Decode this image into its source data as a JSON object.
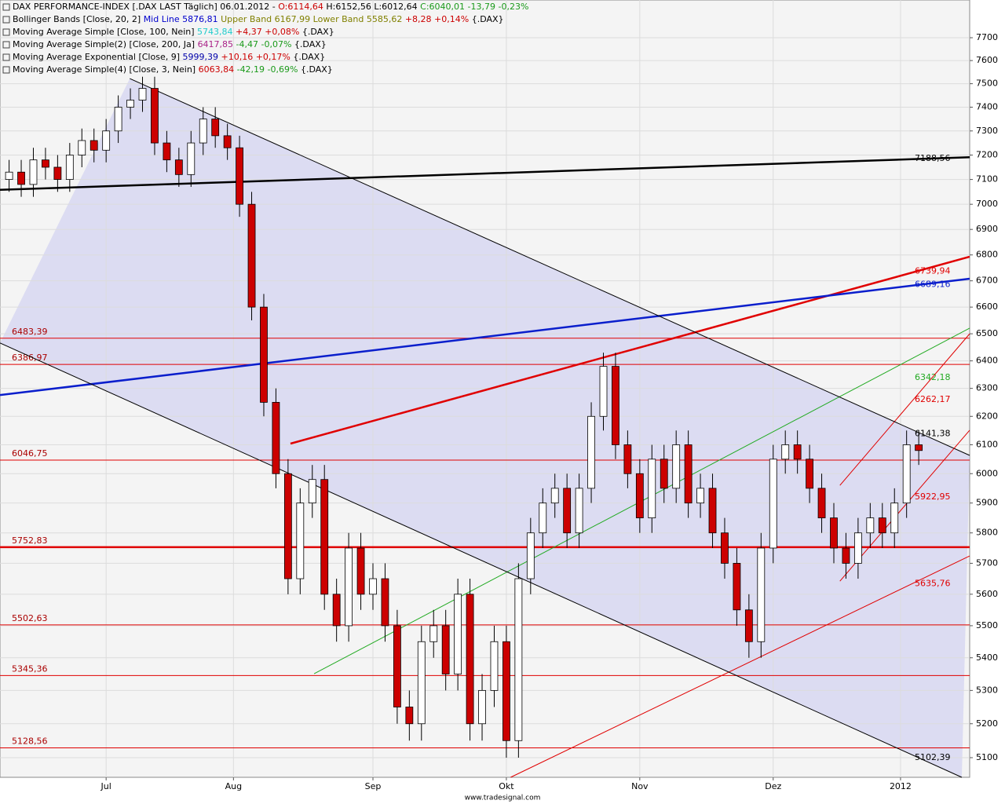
{
  "chart_data": {
    "type": "candlestick",
    "log_scale": true,
    "grid": true,
    "xlim": [
      -1.5,
      158.4
    ],
    "xticks": [
      {
        "value": 16,
        "label": "Jul"
      },
      {
        "value": 37,
        "label": "Aug"
      },
      {
        "value": 60,
        "label": "Sep"
      },
      {
        "value": 82,
        "label": "Okt"
      },
      {
        "value": 104,
        "label": "Nov"
      },
      {
        "value": 126,
        "label": "Dez"
      },
      {
        "value": 147,
        "label": "2012"
      }
    ],
    "ylim": [
      5043,
      7868
    ],
    "yticks": [
      5100,
      5200,
      5300,
      5400,
      5500,
      5600,
      5700,
      5800,
      5900,
      6000,
      6100,
      6200,
      6300,
      6400,
      6500,
      6600,
      6700,
      6800,
      6900,
      7000,
      7100,
      7200,
      7300,
      7400,
      7500,
      7600,
      7700
    ],
    "x": [
      0,
      2,
      4,
      6,
      8,
      10,
      12,
      14,
      16,
      18,
      20,
      22,
      24,
      26,
      28,
      30,
      32,
      34,
      36,
      38,
      40,
      42,
      44,
      46,
      48,
      50,
      52,
      54,
      56,
      58,
      60,
      62,
      64,
      66,
      68,
      70,
      72,
      74,
      76,
      78,
      80,
      82,
      84,
      86,
      88,
      90,
      92,
      94,
      96,
      98,
      100,
      102,
      104,
      106,
      108,
      110,
      112,
      114,
      116,
      118,
      120,
      122,
      124,
      126,
      128,
      130,
      132,
      134,
      136,
      138,
      140,
      142,
      144,
      146,
      148,
      150
    ],
    "open": [
      7100,
      7130,
      7080,
      7180,
      7150,
      7100,
      7200,
      7260,
      7220,
      7300,
      7400,
      7430,
      7480,
      7250,
      7180,
      7120,
      7250,
      7350,
      7280,
      7230,
      7000,
      6600,
      6250,
      6000,
      5650,
      5900,
      5980,
      5600,
      5500,
      5750,
      5600,
      5650,
      5500,
      5250,
      5200,
      5450,
      5500,
      5350,
      5600,
      5200,
      5300,
      5450,
      5150,
      5650,
      5800,
      5900,
      5950,
      5800,
      5950,
      6200,
      6380,
      6100,
      6000,
      5850,
      6050,
      5950,
      6100,
      5900,
      5950,
      5800,
      5700,
      5550,
      5450,
      5750,
      6050,
      6100,
      6050,
      5950,
      5850,
      5750,
      5700,
      5800,
      5850,
      5800,
      5900,
      6100
    ],
    "high": [
      7180,
      7180,
      7230,
      7230,
      7200,
      7250,
      7310,
      7310,
      7350,
      7450,
      7480,
      7530,
      7530,
      7300,
      7230,
      7300,
      7400,
      7400,
      7330,
      7280,
      7050,
      6650,
      6300,
      6050,
      5950,
      6030,
      6030,
      5650,
      5800,
      5800,
      5700,
      5700,
      5550,
      5300,
      5500,
      5550,
      5550,
      5650,
      5650,
      5350,
      5500,
      5500,
      5700,
      5850,
      5950,
      6000,
      6000,
      6000,
      6250,
      6430,
      6430,
      6150,
      6050,
      6100,
      6100,
      6150,
      6150,
      6000,
      6000,
      5850,
      5750,
      5600,
      5800,
      6100,
      6150,
      6150,
      6100,
      6000,
      5900,
      5800,
      5850,
      5900,
      5900,
      5950,
      6150,
      6150
    ],
    "low": [
      7050,
      7030,
      7030,
      7100,
      7050,
      7050,
      7150,
      7170,
      7170,
      7250,
      7350,
      7380,
      7200,
      7130,
      7070,
      7070,
      7200,
      7230,
      7180,
      6950,
      6550,
      6200,
      5950,
      5600,
      5600,
      5850,
      5550,
      5450,
      5450,
      5550,
      5550,
      5450,
      5200,
      5150,
      5150,
      5400,
      5300,
      5300,
      5150,
      5150,
      5250,
      5100,
      5100,
      5600,
      5750,
      5850,
      5750,
      5750,
      5900,
      6150,
      6050,
      5950,
      5800,
      5800,
      5900,
      5900,
      5850,
      5850,
      5750,
      5650,
      5500,
      5400,
      5400,
      5700,
      6000,
      6000,
      5900,
      5800,
      5700,
      5650,
      5650,
      5750,
      5750,
      5750,
      5850,
      6030
    ],
    "close": [
      7130,
      7080,
      7180,
      7150,
      7100,
      7200,
      7260,
      7220,
      7300,
      7400,
      7430,
      7480,
      7250,
      7180,
      7120,
      7250,
      7350,
      7280,
      7230,
      7000,
      6600,
      6250,
      6000,
      5650,
      5900,
      5980,
      5600,
      5500,
      5750,
      5600,
      5650,
      5500,
      5250,
      5200,
      5450,
      5500,
      5350,
      5600,
      5200,
      5300,
      5450,
      5150,
      5650,
      5800,
      5900,
      5950,
      5800,
      5950,
      6200,
      6380,
      6100,
      6000,
      5850,
      6050,
      5950,
      6100,
      5900,
      5950,
      5800,
      5700,
      5550,
      5450,
      5750,
      6050,
      6100,
      6050,
      5950,
      5850,
      5750,
      5700,
      5800,
      5850,
      5800,
      5900,
      6100,
      6080
    ],
    "up_color": "#ffffff",
    "down_color": "#cc0000",
    "levels": [
      {
        "value": 6483.39,
        "label": "6483,39",
        "color": "#e00000",
        "width": 1
      },
      {
        "value": 6386.97,
        "label": "6386,97",
        "color": "#e00000",
        "width": 1
      },
      {
        "value": 6046.75,
        "label": "6046,75",
        "color": "#e00000",
        "width": 1
      },
      {
        "value": 5752.83,
        "label": "5752,83",
        "color": "#e00000",
        "width": 2.5
      },
      {
        "value": 5502.63,
        "label": "5502,63",
        "color": "#e00000",
        "width": 1
      },
      {
        "value": 5345.36,
        "label": "5345,36",
        "color": "#e00000",
        "width": 1
      },
      {
        "value": 5128.56,
        "label": "5128,56",
        "color": "#e00000",
        "width": 1
      }
    ],
    "trendlines": [
      {
        "x": [
          -1.5,
          158.4
        ],
        "y": [
          7058,
          7191
        ],
        "color": "#000000",
        "width": 2.5,
        "value": 7188.56,
        "label": "7188,56"
      },
      {
        "x": [
          46.4,
          158.4
        ],
        "y": [
          6104,
          6793
        ],
        "color": "#e00000",
        "width": 2.5,
        "value": 6739.94,
        "label": "6739,94"
      },
      {
        "x": [
          -1.5,
          158.4
        ],
        "y": [
          6276,
          6708
        ],
        "color": "#0a1ecc",
        "width": 2.5,
        "value": 6689.16,
        "label": "6689,16"
      },
      {
        "x": [
          50.3,
          158.4
        ],
        "y": [
          5351,
          6521
        ],
        "color": "#22aa22",
        "width": 1,
        "value": 6342.18,
        "label": "6342,18"
      },
      {
        "x": [
          137.0,
          158.4
        ],
        "y": [
          5960,
          6500
        ],
        "color": "#e00000",
        "width": 1,
        "value": 6262.17,
        "label": "6262,17"
      },
      {
        "x": [
          19.9,
          158.4
        ],
        "y": [
          7522,
          6063
        ],
        "color": "#000000",
        "width": 1,
        "value": 6141.38,
        "label": "6141,38"
      },
      {
        "x": [
          137.0,
          158.4
        ],
        "y": [
          5642,
          6151
        ],
        "color": "#e00000",
        "width": 1,
        "value": 5922.95,
        "label": "5922,95"
      },
      {
        "x": [
          82.7,
          158.4
        ],
        "y": [
          5043,
          5724
        ],
        "color": "#e00000",
        "width": 1,
        "value": 5635.76,
        "label": "5635,76"
      },
      {
        "x": [
          -1.5,
          157.1
        ],
        "y": [
          6466,
          5043
        ],
        "color": "#000000",
        "width": 1,
        "value": 5102.39,
        "label": "5102,39"
      }
    ],
    "legend": [
      [
        {
          "text": "DAX PERFORMANCE-INDEX [.DAX LAST Täglich] 06.01.2012 - ",
          "color": "#000000"
        },
        {
          "text": "O:6114,64 ",
          "color": "#cc0000"
        },
        {
          "text": "H:6152,56 L:6012,64 ",
          "color": "#000000"
        },
        {
          "text": "C:6040,01 -13,79 -0,23%",
          "color": "#1a9a1a"
        }
      ],
      [
        {
          "text": "Bollinger Bands [Close, 20, 2] ",
          "color": "#000000"
        },
        {
          "text": "Mid Line 5876,81 ",
          "color": "#0000cc"
        },
        {
          "text": "Upper Band 6167,99 Lower Band 5585,62 ",
          "color": "#808000"
        },
        {
          "text": "+8,28 +0,14% ",
          "color": "#cc0000"
        },
        {
          "text": "{.DAX}",
          "color": "#000000"
        }
      ],
      [
        {
          "text": "Moving Average Simple [Close, 100, Nein] ",
          "color": "#000000"
        },
        {
          "text": "5743,84 ",
          "color": "#22cccc"
        },
        {
          "text": "+4,37 +0,08% ",
          "color": "#cc0000"
        },
        {
          "text": "{.DAX}",
          "color": "#000000"
        }
      ],
      [
        {
          "text": "Moving Average Simple(2) [Close, 200, Ja] ",
          "color": "#000000"
        },
        {
          "text": "6417,85 ",
          "color": "#aa2288"
        },
        {
          "text": "-4,47 -0,07% ",
          "color": "#1a9a1a"
        },
        {
          "text": "{.DAX}",
          "color": "#000000"
        }
      ],
      [
        {
          "text": "Moving Average Exponential [Close, 9] ",
          "color": "#000000"
        },
        {
          "text": "5999,39 ",
          "color": "#0000aa"
        },
        {
          "text": "+10,16 +0,17% ",
          "color": "#cc0000"
        },
        {
          "text": "{.DAX}",
          "color": "#000000"
        }
      ],
      [
        {
          "text": "Moving Average Simple(4) [Close, 3, Nein] ",
          "color": "#000000"
        },
        {
          "text": "6063,84 ",
          "color": "#cc0000"
        },
        {
          "text": "-42,19 -0,69% ",
          "color": "#1a9a1a"
        },
        {
          "text": "{.DAX}",
          "color": "#000000"
        }
      ]
    ],
    "footer": "www.tradesignal.com"
  }
}
